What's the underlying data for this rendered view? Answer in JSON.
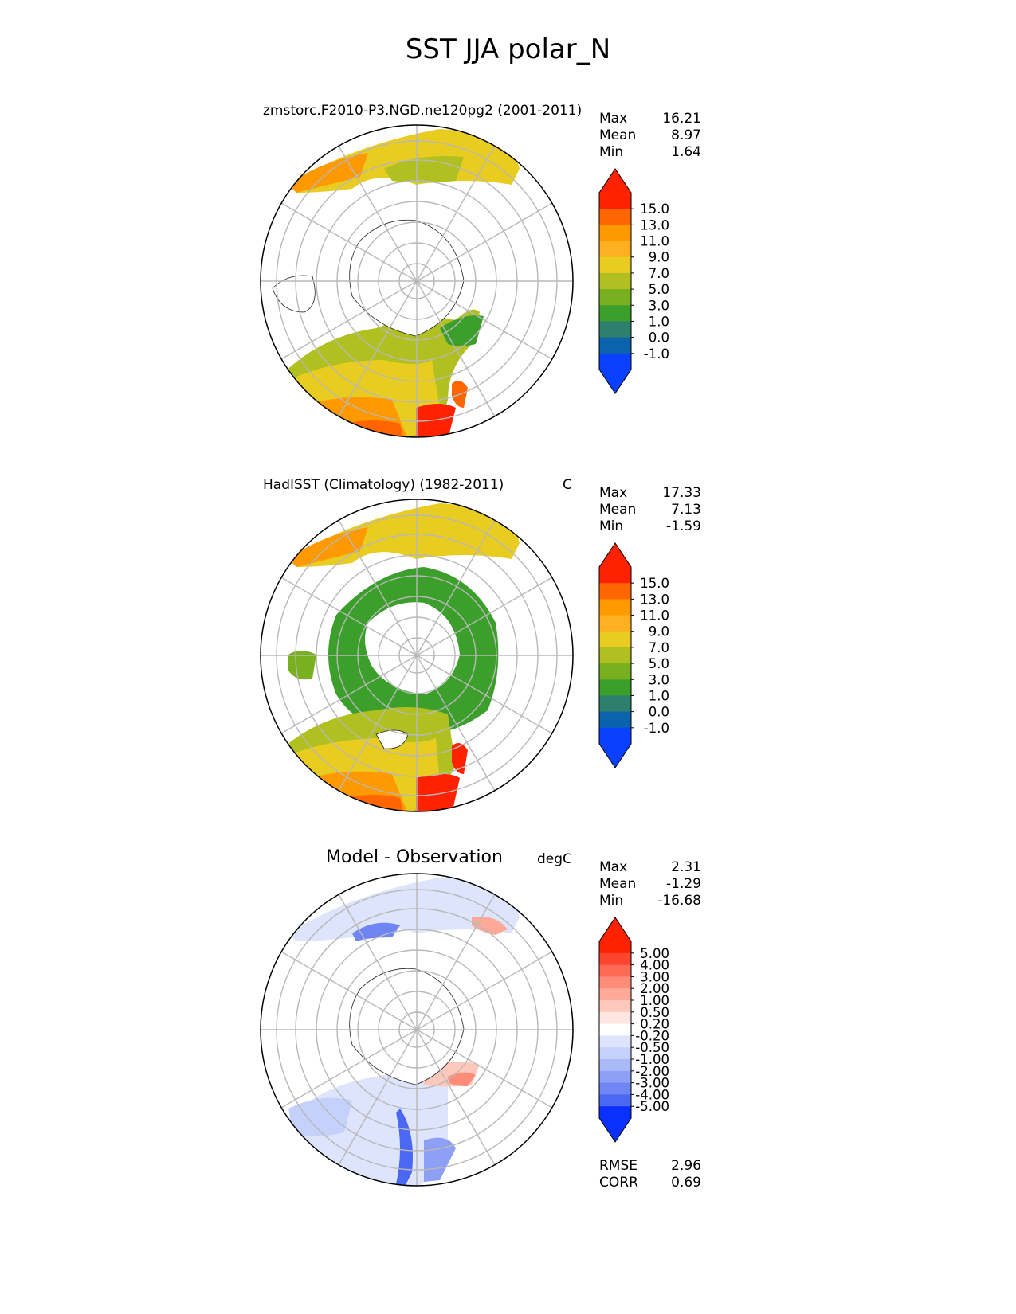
{
  "figure": {
    "title": "SST JJA polar_N"
  },
  "chart_data": [
    {
      "type": "heatmap",
      "projection": "north-polar-stereographic",
      "title": "zmstorc.F2010-P3.NGD.ne120pg2 (2001-2011)",
      "units": "",
      "stats": {
        "Max": "16.21",
        "Mean": "8.97",
        "Min": "1.64"
      },
      "colorbar": {
        "extend": "both",
        "ticks": [
          "15.0",
          "13.0",
          "11.0",
          "9.0",
          "7.0",
          "5.0",
          "3.0",
          "1.0",
          "0.0",
          "-1.0"
        ],
        "colors": [
          "#ff2200",
          "#ff6600",
          "#ff9900",
          "#ffb020",
          "#e8cc20",
          "#b0c020",
          "#78b020",
          "#3c9f2c",
          "#2e7f6e",
          "#0b62ad",
          "#0a40ff"
        ],
        "over_color": "#ff2200",
        "under_color": "#0a40ff"
      }
    },
    {
      "type": "heatmap",
      "projection": "north-polar-stereographic",
      "title": "HadISST (Climatology) (1982-2011)",
      "units": "C",
      "stats": {
        "Max": "17.33",
        "Mean": "7.13",
        "Min": "-1.59"
      },
      "colorbar": {
        "extend": "both",
        "ticks": [
          "15.0",
          "13.0",
          "11.0",
          "9.0",
          "7.0",
          "5.0",
          "3.0",
          "1.0",
          "0.0",
          "-1.0"
        ],
        "colors": [
          "#ff2200",
          "#ff6600",
          "#ff9900",
          "#ffb020",
          "#e8cc20",
          "#b0c020",
          "#78b020",
          "#3c9f2c",
          "#2e7f6e",
          "#0b62ad",
          "#0a40ff"
        ],
        "over_color": "#ff2200",
        "under_color": "#0a40ff"
      }
    },
    {
      "type": "heatmap",
      "projection": "north-polar-stereographic",
      "title": "Model - Observation",
      "units": "degC",
      "stats": {
        "Max": "2.31",
        "Mean": "-1.29",
        "Min": "-16.68"
      },
      "metrics": {
        "RMSE": "2.96",
        "CORR": "0.69"
      },
      "colorbar": {
        "extend": "both",
        "ticks": [
          "5.00",
          "4.00",
          "3.00",
          "2.00",
          "1.00",
          "0.50",
          "0.20",
          "-0.20",
          "-0.50",
          "-1.00",
          "-2.00",
          "-3.00",
          "-4.00",
          "-5.00"
        ],
        "colors": [
          "#ff2200",
          "#ff4430",
          "#ff6a55",
          "#ff8c78",
          "#ffaa98",
          "#ffc8bc",
          "#ffe6e0",
          "#ffffff",
          "#dde4fb",
          "#c5d1fa",
          "#aab9f8",
          "#8ea0f6",
          "#6f85f4",
          "#4a68f2",
          "#0a30ff"
        ],
        "over_color": "#ff2200",
        "under_color": "#0a30ff"
      }
    }
  ]
}
